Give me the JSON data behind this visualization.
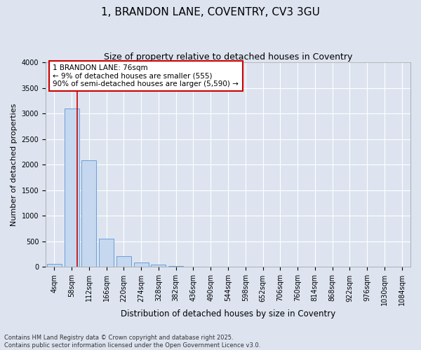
{
  "title": "1, BRANDON LANE, COVENTRY, CV3 3GU",
  "subtitle": "Size of property relative to detached houses in Coventry",
  "xlabel": "Distribution of detached houses by size in Coventry",
  "ylabel": "Number of detached properties",
  "categories": [
    "4sqm",
    "58sqm",
    "112sqm",
    "166sqm",
    "220sqm",
    "274sqm",
    "328sqm",
    "382sqm",
    "436sqm",
    "490sqm",
    "544sqm",
    "598sqm",
    "652sqm",
    "706sqm",
    "760sqm",
    "814sqm",
    "868sqm",
    "922sqm",
    "976sqm",
    "1030sqm",
    "1084sqm"
  ],
  "values": [
    60,
    3100,
    2080,
    555,
    205,
    95,
    45,
    25,
    10,
    5,
    3,
    2,
    1,
    0,
    0,
    0,
    0,
    0,
    0,
    0,
    0
  ],
  "bar_color": "#c5d8ef",
  "bar_edge_color": "#6a9fd8",
  "vline_color": "#cc0000",
  "vline_pos": 1.33,
  "annotation_text": "1 BRANDON LANE: 76sqm\n← 9% of detached houses are smaller (555)\n90% of semi-detached houses are larger (5,590) →",
  "annotation_box_color": "#ffffff",
  "annotation_box_edge_color": "#cc0000",
  "ylim": [
    0,
    4000
  ],
  "yticks": [
    0,
    500,
    1000,
    1500,
    2000,
    2500,
    3000,
    3500,
    4000
  ],
  "fig_background": "#dde4f0",
  "plot_background": "#dde4f0",
  "footer_line1": "Contains HM Land Registry data © Crown copyright and database right 2025.",
  "footer_line2": "Contains public sector information licensed under the Open Government Licence v3.0.",
  "title_fontsize": 11,
  "subtitle_fontsize": 9,
  "xlabel_fontsize": 8.5,
  "ylabel_fontsize": 8,
  "tick_fontsize": 7,
  "annot_fontsize": 7.5,
  "footer_fontsize": 6
}
